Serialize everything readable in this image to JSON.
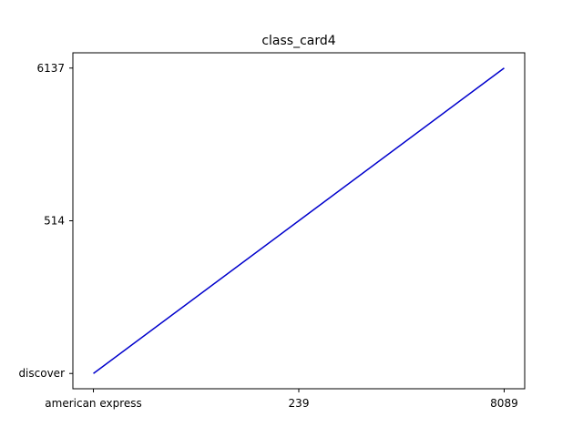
{
  "chart_data": {
    "type": "line",
    "title": "class_card4",
    "xlabel": "",
    "ylabel": "",
    "grid": false,
    "x_categories": [
      "american express",
      "239",
      "8089"
    ],
    "y_categories": [
      "discover",
      "514",
      "6137"
    ],
    "series": [
      {
        "color": "#0000cc",
        "points": [
          {
            "x": "american express",
            "y": "discover"
          },
          {
            "x": "239",
            "y": "514"
          },
          {
            "x": "8089",
            "y": "6137"
          }
        ]
      }
    ]
  }
}
